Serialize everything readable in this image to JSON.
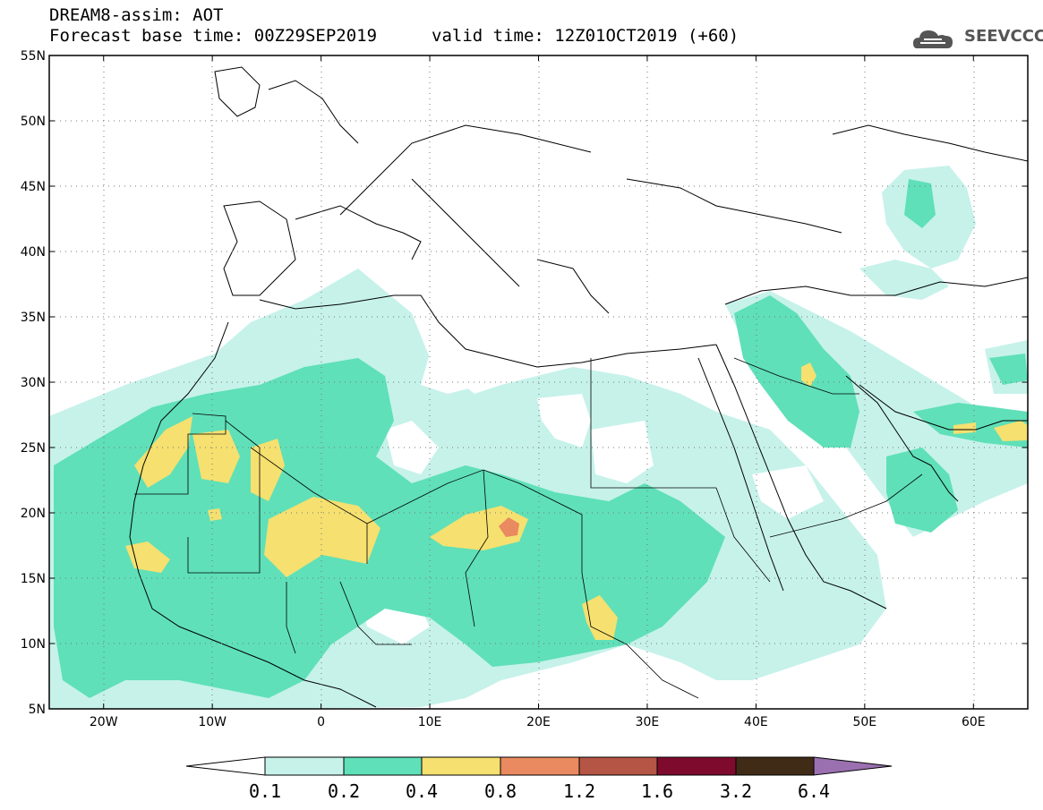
{
  "header": {
    "title_line1": "DREAM8-assim: AOT",
    "title_line2": "Forecast base time: 00Z29SEP2019",
    "valid_time": "valid time: 12Z01OCT2019 (+60)",
    "logo_text": "SEEVCCC"
  },
  "map": {
    "lon_range": [
      -25,
      65
    ],
    "lat_range": [
      5,
      55
    ],
    "lat_labels": [
      "55N",
      "50N",
      "45N",
      "40N",
      "35N",
      "30N",
      "25N",
      "20N",
      "15N",
      "10N",
      "5N"
    ],
    "lat_values": [
      55,
      50,
      45,
      40,
      35,
      30,
      25,
      20,
      15,
      10,
      5
    ],
    "lon_labels": [
      "20W",
      "10W",
      "0",
      "10E",
      "20E",
      "30E",
      "40E",
      "50E",
      "60E"
    ],
    "lon_values": [
      -20,
      -10,
      0,
      10,
      20,
      30,
      40,
      50,
      60
    ],
    "grid": "dotted"
  },
  "colorbar": {
    "levels": [
      "0.1",
      "0.2",
      "0.4",
      "0.8",
      "1.2",
      "1.6",
      "3.2",
      "6.4"
    ],
    "colors": [
      "#ffffff",
      "#c6f2ea",
      "#5fe0b8",
      "#f5e070",
      "#e98a60",
      "#b55545",
      "#7e0b2e",
      "#402b17",
      "#9a70b0"
    ]
  },
  "icons": {
    "logo": "cloud-logo-icon"
  }
}
